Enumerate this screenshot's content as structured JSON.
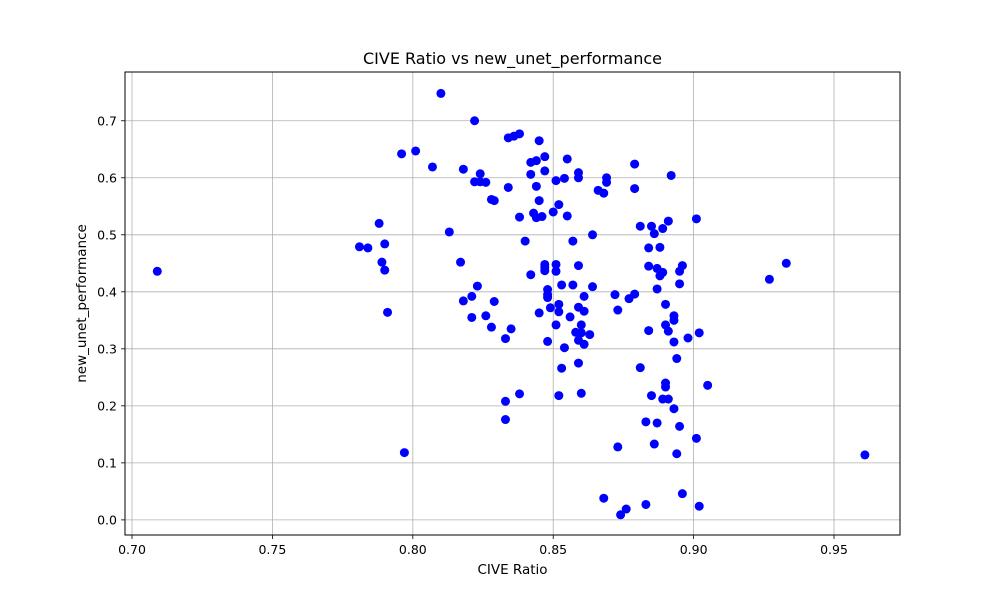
{
  "chart_data": {
    "type": "scatter",
    "title": "CIVE Ratio vs new_unet_performance",
    "xlabel": "CIVE Ratio",
    "ylabel": "new_unet_performance",
    "xlim": [
      0.6975,
      0.9735
    ],
    "ylim": [
      -0.0265,
      0.7855
    ],
    "xticks": [
      0.7,
      0.75,
      0.8,
      0.85,
      0.9,
      0.95
    ],
    "xtick_labels": [
      "0.70",
      "0.75",
      "0.80",
      "0.85",
      "0.90",
      "0.95"
    ],
    "yticks": [
      0.0,
      0.1,
      0.2,
      0.3,
      0.4,
      0.5,
      0.6,
      0.7
    ],
    "ytick_labels": [
      "0.0",
      "0.1",
      "0.2",
      "0.3",
      "0.4",
      "0.5",
      "0.6",
      "0.7"
    ],
    "grid": true,
    "colors": {
      "point": "#0000ff",
      "grid": "#b0b0b0",
      "axis": "#000000",
      "background": "#ffffff"
    },
    "points": [
      [
        0.709,
        0.436
      ],
      [
        0.781,
        0.479
      ],
      [
        0.784,
        0.477
      ],
      [
        0.788,
        0.52
      ],
      [
        0.789,
        0.452
      ],
      [
        0.79,
        0.438
      ],
      [
        0.79,
        0.484
      ],
      [
        0.791,
        0.364
      ],
      [
        0.796,
        0.642
      ],
      [
        0.797,
        0.118
      ],
      [
        0.801,
        0.647
      ],
      [
        0.807,
        0.619
      ],
      [
        0.81,
        0.748
      ],
      [
        0.813,
        0.505
      ],
      [
        0.817,
        0.452
      ],
      [
        0.818,
        0.384
      ],
      [
        0.818,
        0.615
      ],
      [
        0.821,
        0.392
      ],
      [
        0.821,
        0.355
      ],
      [
        0.822,
        0.593
      ],
      [
        0.822,
        0.7
      ],
      [
        0.823,
        0.41
      ],
      [
        0.824,
        0.607
      ],
      [
        0.824,
        0.593
      ],
      [
        0.826,
        0.592
      ],
      [
        0.826,
        0.358
      ],
      [
        0.828,
        0.338
      ],
      [
        0.828,
        0.562
      ],
      [
        0.829,
        0.56
      ],
      [
        0.829,
        0.383
      ],
      [
        0.833,
        0.318
      ],
      [
        0.833,
        0.208
      ],
      [
        0.833,
        0.176
      ],
      [
        0.834,
        0.583
      ],
      [
        0.834,
        0.67
      ],
      [
        0.835,
        0.335
      ],
      [
        0.836,
        0.673
      ],
      [
        0.838,
        0.677
      ],
      [
        0.838,
        0.531
      ],
      [
        0.838,
        0.221
      ],
      [
        0.84,
        0.489
      ],
      [
        0.842,
        0.627
      ],
      [
        0.842,
        0.606
      ],
      [
        0.842,
        0.43
      ],
      [
        0.843,
        0.538
      ],
      [
        0.844,
        0.53
      ],
      [
        0.844,
        0.63
      ],
      [
        0.844,
        0.585
      ],
      [
        0.845,
        0.56
      ],
      [
        0.845,
        0.665
      ],
      [
        0.845,
        0.363
      ],
      [
        0.846,
        0.532
      ],
      [
        0.847,
        0.448
      ],
      [
        0.847,
        0.612
      ],
      [
        0.847,
        0.443
      ],
      [
        0.847,
        0.637
      ],
      [
        0.847,
        0.437
      ],
      [
        0.848,
        0.404
      ],
      [
        0.848,
        0.395
      ],
      [
        0.848,
        0.39
      ],
      [
        0.848,
        0.313
      ],
      [
        0.849,
        0.372
      ],
      [
        0.85,
        0.54
      ],
      [
        0.851,
        0.448
      ],
      [
        0.851,
        0.436
      ],
      [
        0.851,
        0.342
      ],
      [
        0.851,
        0.595
      ],
      [
        0.852,
        0.218
      ],
      [
        0.852,
        0.553
      ],
      [
        0.852,
        0.378
      ],
      [
        0.852,
        0.365
      ],
      [
        0.853,
        0.266
      ],
      [
        0.853,
        0.412
      ],
      [
        0.854,
        0.599
      ],
      [
        0.854,
        0.302
      ],
      [
        0.855,
        0.633
      ],
      [
        0.855,
        0.533
      ],
      [
        0.856,
        0.356
      ],
      [
        0.857,
        0.412
      ],
      [
        0.857,
        0.489
      ],
      [
        0.858,
        0.329
      ],
      [
        0.859,
        0.315
      ],
      [
        0.859,
        0.609
      ],
      [
        0.859,
        0.6
      ],
      [
        0.859,
        0.446
      ],
      [
        0.859,
        0.373
      ],
      [
        0.859,
        0.275
      ],
      [
        0.86,
        0.222
      ],
      [
        0.86,
        0.328
      ],
      [
        0.86,
        0.342
      ],
      [
        0.861,
        0.366
      ],
      [
        0.861,
        0.308
      ],
      [
        0.861,
        0.392
      ],
      [
        0.863,
        0.325
      ],
      [
        0.864,
        0.5
      ],
      [
        0.864,
        0.409
      ],
      [
        0.866,
        0.578
      ],
      [
        0.868,
        0.573
      ],
      [
        0.868,
        0.038
      ],
      [
        0.869,
        0.592
      ],
      [
        0.869,
        0.6
      ],
      [
        0.872,
        0.395
      ],
      [
        0.873,
        0.368
      ],
      [
        0.873,
        0.128
      ],
      [
        0.874,
        0.009
      ],
      [
        0.876,
        0.019
      ],
      [
        0.877,
        0.388
      ],
      [
        0.879,
        0.396
      ],
      [
        0.879,
        0.581
      ],
      [
        0.879,
        0.624
      ],
      [
        0.881,
        0.515
      ],
      [
        0.881,
        0.267
      ],
      [
        0.883,
        0.172
      ],
      [
        0.883,
        0.027
      ],
      [
        0.884,
        0.445
      ],
      [
        0.884,
        0.477
      ],
      [
        0.884,
        0.332
      ],
      [
        0.885,
        0.515
      ],
      [
        0.885,
        0.218
      ],
      [
        0.886,
        0.502
      ],
      [
        0.886,
        0.133
      ],
      [
        0.887,
        0.441
      ],
      [
        0.887,
        0.405
      ],
      [
        0.887,
        0.17
      ],
      [
        0.888,
        0.478
      ],
      [
        0.888,
        0.428
      ],
      [
        0.889,
        0.434
      ],
      [
        0.889,
        0.212
      ],
      [
        0.889,
        0.511
      ],
      [
        0.89,
        0.378
      ],
      [
        0.89,
        0.233
      ],
      [
        0.89,
        0.24
      ],
      [
        0.89,
        0.342
      ],
      [
        0.891,
        0.524
      ],
      [
        0.891,
        0.212
      ],
      [
        0.891,
        0.331
      ],
      [
        0.892,
        0.604
      ],
      [
        0.893,
        0.35
      ],
      [
        0.893,
        0.312
      ],
      [
        0.893,
        0.358
      ],
      [
        0.893,
        0.195
      ],
      [
        0.894,
        0.283
      ],
      [
        0.894,
        0.116
      ],
      [
        0.895,
        0.164
      ],
      [
        0.895,
        0.436
      ],
      [
        0.895,
        0.414
      ],
      [
        0.896,
        0.446
      ],
      [
        0.896,
        0.046
      ],
      [
        0.898,
        0.319
      ],
      [
        0.901,
        0.528
      ],
      [
        0.901,
        0.143
      ],
      [
        0.902,
        0.328
      ],
      [
        0.902,
        0.024
      ],
      [
        0.905,
        0.236
      ],
      [
        0.927,
        0.422
      ],
      [
        0.933,
        0.45
      ],
      [
        0.961,
        0.114
      ]
    ]
  }
}
